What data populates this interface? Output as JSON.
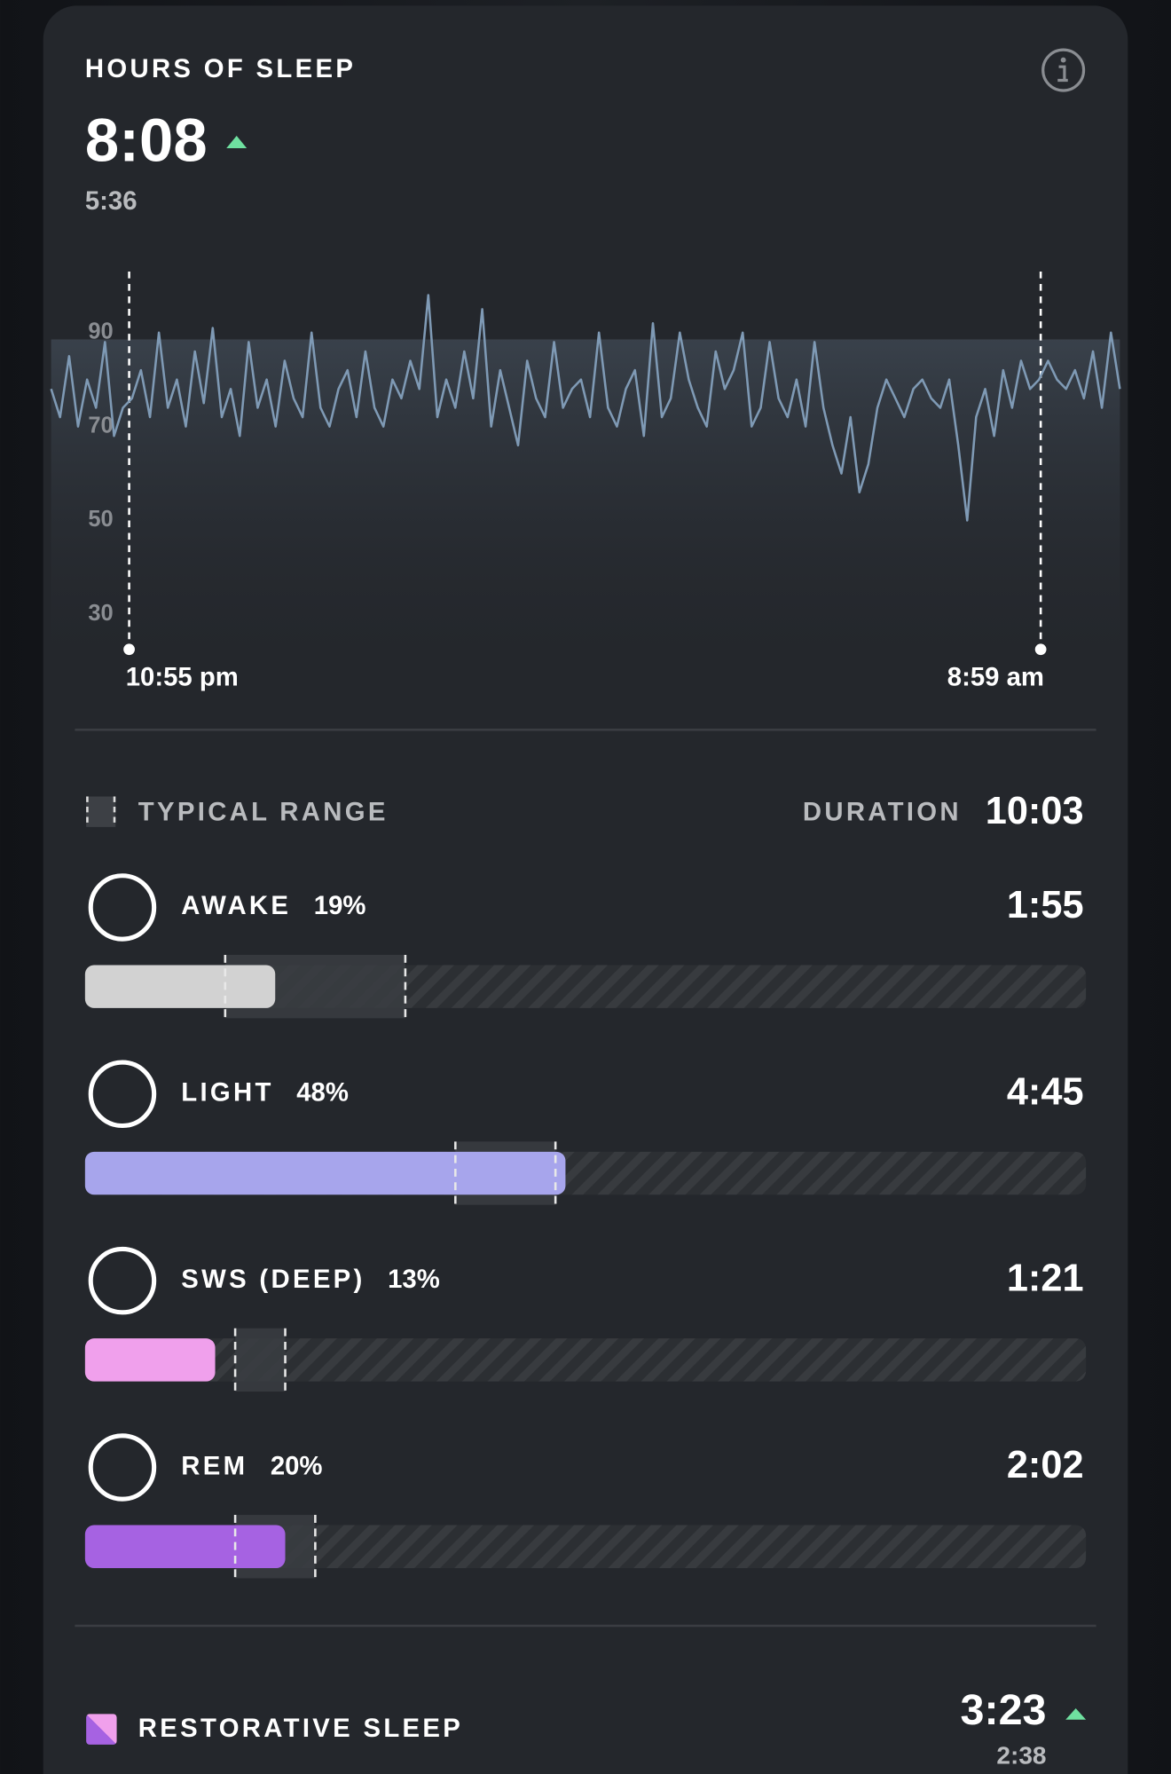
{
  "header": {
    "title": "HOURS OF SLEEP",
    "value": "8:08",
    "previous": "5:36"
  },
  "chart_data": {
    "type": "line",
    "ylim": [
      30,
      90
    ],
    "yticks": [
      30,
      50,
      70,
      90
    ],
    "x_labels": [
      "10:55 pm",
      "8:59 am"
    ],
    "series": [
      {
        "color": "#7f9ab5",
        "values": [
          78,
          72,
          85,
          70,
          80,
          74,
          88,
          68,
          74,
          76,
          82,
          72,
          90,
          74,
          80,
          70,
          86,
          75,
          91,
          72,
          78,
          68,
          88,
          74,
          80,
          70,
          84,
          76,
          72,
          90,
          74,
          70,
          78,
          82,
          72,
          86,
          74,
          70,
          80,
          76,
          84,
          78,
          98,
          72,
          80,
          74,
          86,
          76,
          95,
          70,
          82,
          74,
          66,
          84,
          76,
          72,
          88,
          74,
          78,
          80,
          72,
          90,
          74,
          70,
          78,
          82,
          68,
          92,
          72,
          76,
          90,
          80,
          74,
          70,
          86,
          78,
          82,
          90,
          70,
          74,
          88,
          76,
          72,
          80,
          70,
          88,
          74,
          66,
          60,
          72,
          56,
          62,
          74,
          80,
          76,
          72,
          78,
          80,
          76,
          74,
          80,
          66,
          50,
          72,
          78,
          68,
          82,
          74,
          84,
          78,
          80,
          84,
          80,
          78,
          82,
          76,
          86,
          74,
          90,
          78
        ]
      }
    ]
  },
  "legend": {
    "typical_range": "TYPICAL RANGE",
    "duration_label": "DURATION",
    "duration": "10:03"
  },
  "stages": [
    {
      "name": "AWAKE",
      "value": 19,
      "value_label": "19%",
      "duration": "1:55",
      "typical_range": [
        14,
        32
      ],
      "color": "#d2d2d2",
      "label_color": "#b9bbbe"
    },
    {
      "name": "LIGHT",
      "value": 48,
      "value_label": "48%",
      "duration": "4:45",
      "typical_range": [
        37,
        47
      ],
      "color": "#a7a5ec",
      "label_color": "#a7a5ec"
    },
    {
      "name": "SWS (DEEP)",
      "value": 13,
      "value_label": "13%",
      "duration": "1:21",
      "typical_range": [
        15,
        20
      ],
      "color": "#f0a0ec",
      "label_color": "#f0a0ec"
    },
    {
      "name": "REM",
      "value": 20,
      "value_label": "20%",
      "duration": "2:02",
      "typical_range": [
        15,
        23
      ],
      "color": "#a662e2",
      "label_color": "#a662e2"
    }
  ],
  "restorative": {
    "title": "RESTORATIVE SLEEP",
    "value": "3:23",
    "previous": "2:38"
  }
}
